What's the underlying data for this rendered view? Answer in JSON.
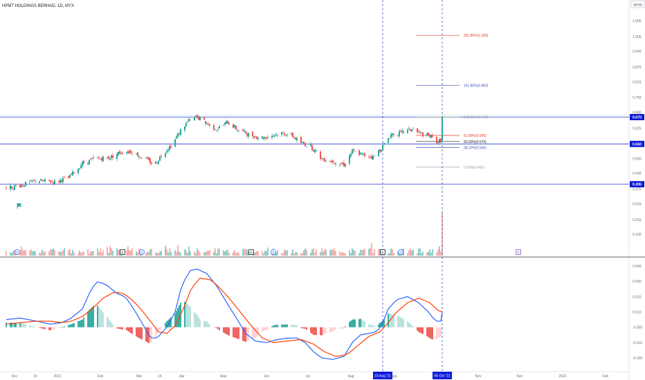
{
  "header": {
    "title": "HPMT HOLDINGS BERHAD, 1D, MYX",
    "currency": "MYR"
  },
  "colors": {
    "up": "#26a69a",
    "down": "#ef5350",
    "hist_up_strong": "#26a69a",
    "hist_up_weak": "#b2dfdb",
    "hist_down_strong": "#ef5350",
    "hist_down_weak": "#ffcdd2",
    "macd": "#2962ff",
    "signal": "#ff3d00",
    "hline": "#2e3ad6",
    "fib_red": "#e53935",
    "fib_blue": "#3f51b5",
    "fib_grey": "#9e9e9e",
    "vline": "#3f51b5",
    "label_bg": "#0d1bd8"
  },
  "chart_data": [
    {
      "type": "candlestick",
      "title": "HPMT HOLDINGS BERHAD, 1D, MYX",
      "ylabel": "MYR",
      "ylim": [
        0.165,
        1.115
      ],
      "y_ticks": [
        "1.065",
        "1.000",
        "0.940",
        "0.875",
        "0.815",
        "0.750",
        "0.690",
        "0.625",
        "0.565",
        "0.500",
        "0.440",
        "0.375",
        "0.315",
        "0.250",
        "0.190"
      ],
      "x_ticks": [
        "Dec",
        "16",
        "2021",
        "Feb",
        "Mar",
        "16",
        "Apr",
        "May",
        "Jun",
        "Jul",
        "Aug",
        "Sep",
        "Nov",
        "Dec",
        "2022",
        "Feb"
      ],
      "x_tick_days": [
        -4,
        11,
        27,
        58,
        86,
        101,
        117,
        147,
        178,
        208,
        239,
        270,
        331,
        361,
        392,
        423
      ],
      "price_levels": [
        {
          "label": "0.670",
          "value": 0.67
        },
        {
          "label": "0.560",
          "value": 0.56
        },
        {
          "label": "0.395",
          "value": 0.395
        }
      ],
      "fibonacci": [
        {
          "label": "261.80%(1.005)",
          "value": 1.005,
          "color": "red"
        },
        {
          "label": "161.80%(0.800)",
          "value": 0.8,
          "color": "blue"
        },
        {
          "label": "100.00%(0.670)",
          "value": 0.67,
          "color": "grey"
        },
        {
          "label": "61.80%(0.595)",
          "value": 0.595,
          "color": "red"
        },
        {
          "label": "50.00%(0.570)",
          "value": 0.57,
          "color": "black"
        },
        {
          "label": "38.20%(0.545)",
          "value": 0.545,
          "color": "blue"
        },
        {
          "label": "0.00%(0.465)",
          "value": 0.465,
          "color": "grey"
        }
      ],
      "vertical_markers": [
        {
          "label": "23 Aug '21",
          "day": 262
        },
        {
          "label": "05 Oct '21",
          "day": 305
        }
      ],
      "event_markers": [
        {
          "label": "D",
          "day": -2
        },
        {
          "label": "E",
          "day": 74
        },
        {
          "label": "D",
          "day": 88
        },
        {
          "label": "E",
          "day": 167
        },
        {
          "label": "D",
          "day": 183
        },
        {
          "label": "E",
          "day": 262
        },
        {
          "label": "D",
          "day": 275
        },
        {
          "label": "E",
          "day": 360
        }
      ],
      "price_anchors": [
        [
          -10,
          0.38
        ],
        [
          0,
          0.39
        ],
        [
          12,
          0.41
        ],
        [
          25,
          0.405
        ],
        [
          35,
          0.42
        ],
        [
          45,
          0.48
        ],
        [
          55,
          0.5
        ],
        [
          65,
          0.505
        ],
        [
          72,
          0.525
        ],
        [
          80,
          0.53
        ],
        [
          90,
          0.5
        ],
        [
          97,
          0.475
        ],
        [
          103,
          0.52
        ],
        [
          110,
          0.56
        ],
        [
          117,
          0.625
        ],
        [
          122,
          0.655
        ],
        [
          128,
          0.67
        ],
        [
          135,
          0.645
        ],
        [
          142,
          0.62
        ],
        [
          150,
          0.65
        ],
        [
          157,
          0.62
        ],
        [
          165,
          0.6
        ],
        [
          173,
          0.585
        ],
        [
          180,
          0.59
        ],
        [
          188,
          0.605
        ],
        [
          195,
          0.6
        ],
        [
          203,
          0.565
        ],
        [
          210,
          0.55
        ],
        [
          218,
          0.5
        ],
        [
          226,
          0.49
        ],
        [
          234,
          0.475
        ],
        [
          240,
          0.53
        ],
        [
          248,
          0.515
        ],
        [
          255,
          0.505
        ],
        [
          262,
          0.55
        ],
        [
          268,
          0.6
        ],
        [
          275,
          0.605
        ],
        [
          283,
          0.62
        ],
        [
          290,
          0.6
        ],
        [
          297,
          0.59
        ],
        [
          301,
          0.57
        ],
        [
          304,
          0.575
        ],
        [
          305,
          0.665
        ]
      ],
      "volume_spikes": [
        {
          "day": 117,
          "value": 0.95
        },
        {
          "day": 305,
          "value": 0.62
        }
      ],
      "volume_level": 0.12
    },
    {
      "type": "line",
      "title": "",
      "ylim": [
        -0.026,
        0.046
      ],
      "y_ticks": [
        "0.040",
        "0.030",
        "0.020",
        "0.010",
        "-0.000",
        "-0.010",
        "-0.020"
      ],
      "y_tick_values": [
        0.04,
        0.03,
        0.02,
        0.01,
        0.0,
        -0.01,
        -0.02
      ],
      "macd_anchors": [
        [
          -10,
          0.005
        ],
        [
          0,
          0.006
        ],
        [
          12,
          0.004
        ],
        [
          22,
          0.002
        ],
        [
          30,
          0.003
        ],
        [
          37,
          0.006
        ],
        [
          45,
          0.012
        ],
        [
          50,
          0.022
        ],
        [
          55,
          0.03
        ],
        [
          62,
          0.028
        ],
        [
          70,
          0.022
        ],
        [
          76,
          0.02
        ],
        [
          82,
          0.012
        ],
        [
          88,
          0.003
        ],
        [
          93,
          -0.005
        ],
        [
          96,
          -0.008
        ],
        [
          100,
          -0.006
        ],
        [
          106,
          0.0
        ],
        [
          112,
          0.01
        ],
        [
          117,
          0.028
        ],
        [
          123,
          0.037
        ],
        [
          128,
          0.038
        ],
        [
          135,
          0.035
        ],
        [
          142,
          0.027
        ],
        [
          150,
          0.015
        ],
        [
          157,
          0.005
        ],
        [
          163,
          -0.004
        ],
        [
          170,
          -0.009
        ],
        [
          178,
          -0.01
        ],
        [
          186,
          -0.008
        ],
        [
          194,
          -0.007
        ],
        [
          200,
          -0.007
        ],
        [
          206,
          -0.01
        ],
        [
          212,
          -0.016
        ],
        [
          218,
          -0.02
        ],
        [
          226,
          -0.021
        ],
        [
          234,
          -0.019
        ],
        [
          240,
          -0.01
        ],
        [
          246,
          -0.005
        ],
        [
          252,
          -0.004
        ],
        [
          258,
          -0.003
        ],
        [
          262,
          0.003
        ],
        [
          266,
          0.012
        ],
        [
          272,
          0.018
        ],
        [
          280,
          0.02
        ],
        [
          288,
          0.016
        ],
        [
          295,
          0.01
        ],
        [
          300,
          0.004
        ],
        [
          304,
          0.004
        ],
        [
          305,
          0.01
        ]
      ],
      "signal_anchors": [
        [
          -10,
          0.002
        ],
        [
          0,
          0.003
        ],
        [
          12,
          0.004
        ],
        [
          22,
          0.004
        ],
        [
          30,
          0.003
        ],
        [
          37,
          0.004
        ],
        [
          45,
          0.007
        ],
        [
          52,
          0.012
        ],
        [
          60,
          0.019
        ],
        [
          68,
          0.023
        ],
        [
          75,
          0.022
        ],
        [
          82,
          0.017
        ],
        [
          88,
          0.011
        ],
        [
          95,
          0.003
        ],
        [
          100,
          -0.003
        ],
        [
          106,
          -0.004
        ],
        [
          112,
          0.001
        ],
        [
          118,
          0.012
        ],
        [
          124,
          0.026
        ],
        [
          130,
          0.032
        ],
        [
          138,
          0.031
        ],
        [
          145,
          0.025
        ],
        [
          152,
          0.018
        ],
        [
          160,
          0.009
        ],
        [
          167,
          0.001
        ],
        [
          175,
          -0.007
        ],
        [
          183,
          -0.01
        ],
        [
          193,
          -0.009
        ],
        [
          203,
          -0.008
        ],
        [
          212,
          -0.011
        ],
        [
          220,
          -0.016
        ],
        [
          228,
          -0.019
        ],
        [
          236,
          -0.018
        ],
        [
          244,
          -0.012
        ],
        [
          252,
          -0.006
        ],
        [
          260,
          -0.003
        ],
        [
          266,
          0.003
        ],
        [
          272,
          0.01
        ],
        [
          280,
          0.016
        ],
        [
          288,
          0.019
        ],
        [
          296,
          0.016
        ],
        [
          302,
          0.011
        ],
        [
          305,
          0.01
        ]
      ]
    }
  ]
}
